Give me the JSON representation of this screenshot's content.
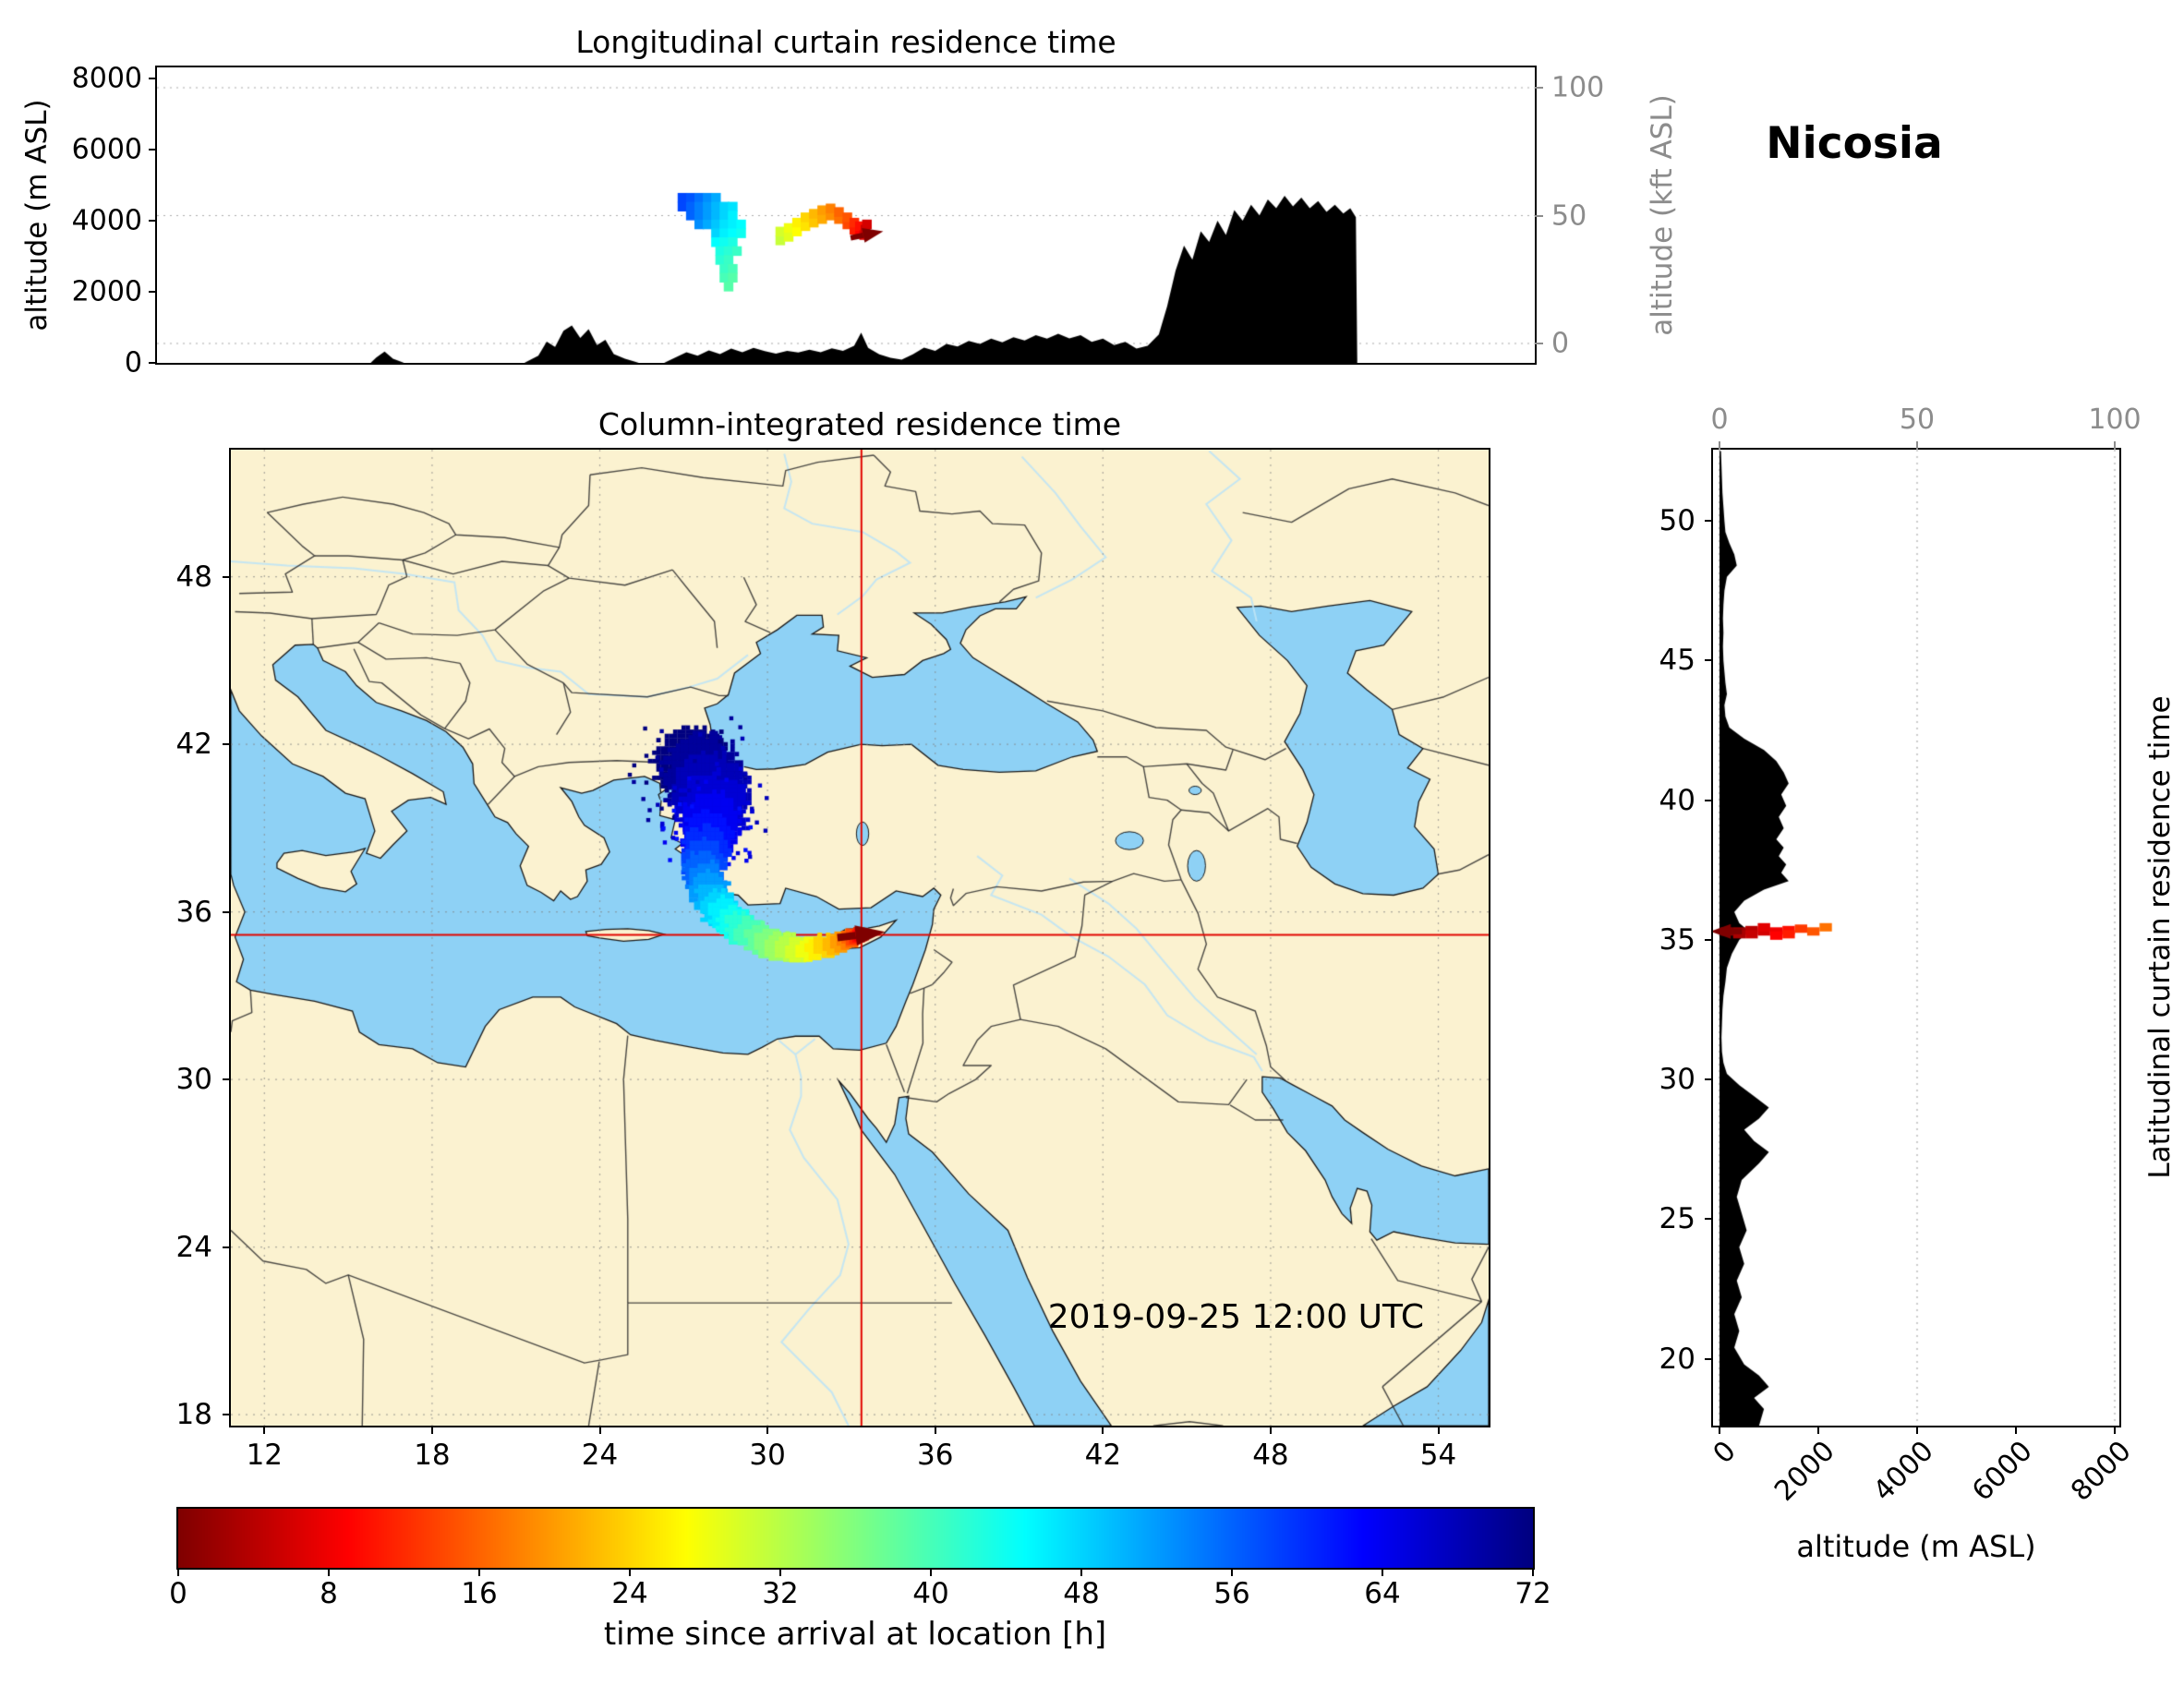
{
  "figure": {
    "location": "Nicosia",
    "datetime": "2019-09-25 12:00 UTC"
  },
  "colors": {
    "land": "#fbf2d0",
    "sea": "#8ed1f5",
    "coast": "#1a1a1a",
    "border": "#2b2b2b",
    "terrain": "#000000",
    "crosshair": "#e10600",
    "grid": "#999999",
    "axis_gray": "#8c8c8c",
    "river": "#bfe4f5",
    "arrow": "#7f0000"
  },
  "panels": {
    "longitudinal": {
      "title": "Longitudinal curtain residence time",
      "ylabel_left": "altitude (m ASL)",
      "ylabel_right": "altitude (kft ASL)",
      "yticks_left": [
        0,
        2000,
        4000,
        6000,
        8000
      ],
      "yticks_right": [
        0,
        50,
        100
      ],
      "ylim_m": [
        0,
        8300
      ]
    },
    "map": {
      "title": "Column-integrated residence time",
      "xticks": [
        12,
        18,
        24,
        30,
        36,
        42,
        48,
        54
      ],
      "yticks": [
        18,
        24,
        30,
        36,
        42,
        48
      ],
      "extent": {
        "lon": [
          10.8,
          55.8
        ],
        "lat": [
          17.6,
          52.55
        ]
      },
      "datetime": "2019-09-25 12:00 UTC"
    },
    "latitudinal": {
      "ylabel_right": "Latitudinal curtain residence time",
      "xlabel": "altitude (m ASL)",
      "xticks_m": [
        0,
        2000,
        4000,
        6000,
        8000
      ],
      "xticks_kft": [
        0,
        50,
        100
      ],
      "yticks_lat": [
        20,
        25,
        30,
        35,
        40,
        45,
        50
      ]
    }
  },
  "colorbar": {
    "label": "time since arrival at location [h]",
    "ticks": [
      0,
      8,
      16,
      24,
      32,
      40,
      48,
      56,
      64,
      72
    ],
    "min": 0,
    "max": 72,
    "colormap": "jet_r"
  },
  "chart_data": [
    {
      "name": "longitudinal_curtain",
      "type": "heatmap",
      "x": "longitude_deg",
      "y": "altitude_m",
      "value": "time_since_arrival_h",
      "terrain_profile": [
        [
          8.2,
          0
        ],
        [
          15.8,
          0
        ],
        [
          16.0,
          150
        ],
        [
          16.3,
          320
        ],
        [
          16.6,
          120
        ],
        [
          17.0,
          0
        ],
        [
          21.3,
          0
        ],
        [
          21.8,
          200
        ],
        [
          22.1,
          600
        ],
        [
          22.4,
          450
        ],
        [
          22.7,
          900
        ],
        [
          23.0,
          1050
        ],
        [
          23.3,
          700
        ],
        [
          23.6,
          950
        ],
        [
          23.9,
          500
        ],
        [
          24.2,
          650
        ],
        [
          24.5,
          250
        ],
        [
          24.9,
          120
        ],
        [
          25.4,
          0
        ],
        [
          26.3,
          0
        ],
        [
          26.7,
          150
        ],
        [
          27.1,
          300
        ],
        [
          27.5,
          200
        ],
        [
          27.9,
          350
        ],
        [
          28.3,
          250
        ],
        [
          28.7,
          400
        ],
        [
          29.1,
          300
        ],
        [
          29.5,
          420
        ],
        [
          29.9,
          330
        ],
        [
          30.3,
          260
        ],
        [
          30.7,
          340
        ],
        [
          31.1,
          290
        ],
        [
          31.5,
          370
        ],
        [
          31.9,
          300
        ],
        [
          32.3,
          410
        ],
        [
          32.7,
          340
        ],
        [
          33.1,
          480
        ],
        [
          33.35,
          850
        ],
        [
          33.6,
          420
        ],
        [
          34.0,
          240
        ],
        [
          34.4,
          140
        ],
        [
          34.8,
          90
        ],
        [
          35.2,
          240
        ],
        [
          35.6,
          430
        ],
        [
          36.0,
          340
        ],
        [
          36.4,
          530
        ],
        [
          36.8,
          460
        ],
        [
          37.2,
          620
        ],
        [
          37.6,
          530
        ],
        [
          38.0,
          680
        ],
        [
          38.4,
          580
        ],
        [
          38.8,
          720
        ],
        [
          39.2,
          630
        ],
        [
          39.6,
          780
        ],
        [
          40.0,
          680
        ],
        [
          40.4,
          820
        ],
        [
          40.8,
          690
        ],
        [
          41.2,
          780
        ],
        [
          41.6,
          590
        ],
        [
          42.0,
          680
        ],
        [
          42.4,
          500
        ],
        [
          42.8,
          590
        ],
        [
          43.2,
          400
        ],
        [
          43.6,
          480
        ],
        [
          44.0,
          800
        ],
        [
          44.3,
          1600
        ],
        [
          44.6,
          2600
        ],
        [
          44.9,
          3300
        ],
        [
          45.2,
          2900
        ],
        [
          45.5,
          3700
        ],
        [
          45.8,
          3400
        ],
        [
          46.1,
          4000
        ],
        [
          46.4,
          3600
        ],
        [
          46.7,
          4300
        ],
        [
          47.0,
          4000
        ],
        [
          47.3,
          4450
        ],
        [
          47.6,
          4150
        ],
        [
          47.9,
          4600
        ],
        [
          48.2,
          4350
        ],
        [
          48.5,
          4700
        ],
        [
          48.8,
          4400
        ],
        [
          49.1,
          4650
        ],
        [
          49.4,
          4350
        ],
        [
          49.7,
          4550
        ],
        [
          50.0,
          4250
        ],
        [
          50.3,
          4450
        ],
        [
          50.6,
          4200
        ],
        [
          50.85,
          4350
        ],
        [
          51.05,
          4100
        ],
        [
          51.1,
          0
        ],
        [
          57.4,
          0
        ]
      ],
      "cells": [
        [
          26.95,
          4650,
          58
        ],
        [
          27.25,
          4650,
          57
        ],
        [
          27.55,
          4650,
          55
        ],
        [
          27.85,
          4650,
          53
        ],
        [
          28.15,
          4650,
          51
        ],
        [
          26.95,
          4400,
          58
        ],
        [
          27.25,
          4400,
          56
        ],
        [
          27.55,
          4400,
          54
        ],
        [
          27.85,
          4400,
          52
        ],
        [
          28.15,
          4400,
          50
        ],
        [
          28.45,
          4400,
          48
        ],
        [
          28.75,
          4400,
          47
        ],
        [
          27.25,
          4150,
          56
        ],
        [
          27.55,
          4150,
          54
        ],
        [
          27.85,
          4150,
          52
        ],
        [
          28.15,
          4150,
          50
        ],
        [
          28.45,
          4150,
          48
        ],
        [
          28.75,
          4150,
          46
        ],
        [
          27.55,
          3900,
          53
        ],
        [
          27.85,
          3900,
          51
        ],
        [
          28.15,
          3900,
          49
        ],
        [
          28.45,
          3900,
          47
        ],
        [
          28.75,
          3900,
          46
        ],
        [
          29.05,
          3900,
          45
        ],
        [
          28.15,
          3650,
          48
        ],
        [
          28.45,
          3650,
          46
        ],
        [
          28.75,
          3650,
          45
        ],
        [
          29.05,
          3650,
          44
        ],
        [
          28.15,
          3400,
          45
        ],
        [
          28.45,
          3400,
          44
        ],
        [
          28.75,
          3400,
          43
        ],
        [
          28.3,
          3150,
          43
        ],
        [
          28.6,
          3150,
          42
        ],
        [
          28.9,
          3150,
          41
        ],
        [
          28.3,
          2900,
          42
        ],
        [
          28.6,
          2900,
          41
        ],
        [
          28.45,
          2650,
          41
        ],
        [
          28.75,
          2650,
          40
        ],
        [
          28.45,
          2400,
          40
        ],
        [
          28.75,
          2400,
          39
        ],
        [
          28.6,
          2150,
          39
        ],
        [
          30.45,
          3450,
          31
        ],
        [
          30.45,
          3700,
          30
        ],
        [
          30.75,
          3550,
          29
        ],
        [
          30.75,
          3800,
          28
        ],
        [
          31.05,
          3700,
          27
        ],
        [
          31.05,
          3950,
          26
        ],
        [
          31.35,
          3850,
          25
        ],
        [
          31.35,
          4100,
          24
        ],
        [
          31.65,
          3950,
          23
        ],
        [
          31.65,
          4200,
          22
        ],
        [
          31.95,
          4050,
          21
        ],
        [
          31.95,
          4300,
          20
        ],
        [
          32.25,
          4150,
          19
        ],
        [
          32.25,
          4350,
          18
        ],
        [
          32.55,
          4050,
          17
        ],
        [
          32.55,
          4250,
          16
        ],
        [
          32.85,
          3900,
          14
        ],
        [
          32.85,
          4100,
          15
        ],
        [
          33.1,
          3750,
          11
        ],
        [
          33.1,
          3950,
          12
        ],
        [
          33.3,
          3650,
          9
        ],
        [
          33.3,
          3850,
          10
        ],
        [
          33.45,
          3600,
          7
        ],
        [
          33.5,
          3750,
          5
        ],
        [
          33.55,
          3900,
          6
        ]
      ],
      "arrow": {
        "lon": 33.62,
        "alt": 3620,
        "direction": "east"
      }
    },
    {
      "name": "column_integrated_map",
      "type": "heatmap",
      "x": "longitude_deg",
      "y": "latitude_deg",
      "value": "time_since_arrival_h",
      "receptor": {
        "lon": 33.36,
        "lat": 35.18
      },
      "trajectory": [
        [
          27.3,
          41.4,
          72,
          1.5
        ],
        [
          27.7,
          40.9,
          70,
          1.65
        ],
        [
          27.95,
          40.3,
          68,
          1.6
        ],
        [
          28.05,
          39.7,
          66,
          1.45
        ],
        [
          28.0,
          39.15,
          64,
          1.25
        ],
        [
          27.85,
          38.7,
          62,
          1.05
        ],
        [
          27.8,
          38.25,
          60,
          0.95
        ],
        [
          27.72,
          37.85,
          58,
          0.88
        ],
        [
          27.7,
          37.45,
          56,
          0.84
        ],
        [
          27.78,
          37.1,
          54,
          0.8
        ],
        [
          27.9,
          36.75,
          52,
          0.78
        ],
        [
          28.05,
          36.45,
          50,
          0.75
        ],
        [
          28.25,
          36.15,
          48,
          0.73
        ],
        [
          28.5,
          35.9,
          46,
          0.7
        ],
        [
          28.75,
          35.65,
          44,
          0.68
        ],
        [
          29.05,
          35.42,
          42,
          0.66
        ],
        [
          29.35,
          35.22,
          40,
          0.64
        ],
        [
          29.7,
          35.02,
          38,
          0.62
        ],
        [
          30.05,
          34.87,
          36,
          0.6
        ],
        [
          30.4,
          34.76,
          34,
          0.58
        ],
        [
          30.75,
          34.7,
          32,
          0.56
        ],
        [
          31.1,
          34.66,
          30,
          0.54
        ],
        [
          31.45,
          34.66,
          28,
          0.52
        ],
        [
          31.75,
          34.7,
          26,
          0.5
        ],
        [
          32.05,
          34.76,
          24,
          0.48
        ],
        [
          32.35,
          34.83,
          22,
          0.45
        ],
        [
          32.6,
          34.9,
          20,
          0.43
        ],
        [
          32.8,
          34.97,
          18,
          0.4
        ],
        [
          32.95,
          35.03,
          16,
          0.38
        ],
        [
          33.08,
          35.08,
          14,
          0.35
        ],
        [
          33.18,
          35.11,
          12,
          0.33
        ],
        [
          33.26,
          35.14,
          10,
          0.3
        ],
        [
          33.32,
          35.16,
          8,
          0.28
        ],
        [
          33.36,
          35.17,
          6,
          0.26
        ],
        [
          33.38,
          35.18,
          4,
          0.23
        ],
        [
          33.39,
          35.18,
          2,
          0.2
        ],
        [
          33.4,
          35.18,
          0,
          0.18
        ]
      ],
      "arrow": {
        "lon": 33.42,
        "lat": 35.19,
        "direction": "east"
      }
    },
    {
      "name": "latitudinal_curtain",
      "type": "heatmap",
      "x": "altitude_m",
      "y": "latitude_deg",
      "value": "time_since_arrival_h",
      "terrain_profile": [
        [
          17.6,
          800
        ],
        [
          18.2,
          900
        ],
        [
          18.6,
          700
        ],
        [
          19.0,
          1000
        ],
        [
          19.4,
          800
        ],
        [
          19.8,
          500
        ],
        [
          20.4,
          300
        ],
        [
          21.0,
          400
        ],
        [
          21.6,
          300
        ],
        [
          22.2,
          450
        ],
        [
          22.8,
          350
        ],
        [
          23.4,
          500
        ],
        [
          24.0,
          400
        ],
        [
          24.6,
          550
        ],
        [
          25.2,
          450
        ],
        [
          25.8,
          350
        ],
        [
          26.4,
          450
        ],
        [
          27.0,
          800
        ],
        [
          27.4,
          1000
        ],
        [
          27.8,
          700
        ],
        [
          28.2,
          500
        ],
        [
          28.6,
          800
        ],
        [
          29.0,
          1000
        ],
        [
          29.4,
          700
        ],
        [
          29.8,
          400
        ],
        [
          30.2,
          150
        ],
        [
          30.6,
          80
        ],
        [
          31.0,
          50
        ],
        [
          31.5,
          40
        ],
        [
          32.0,
          50
        ],
        [
          32.5,
          60
        ],
        [
          33.0,
          80
        ],
        [
          33.5,
          120
        ],
        [
          34.0,
          150
        ],
        [
          34.5,
          250
        ],
        [
          35.0,
          400
        ],
        [
          35.3,
          600
        ],
        [
          35.6,
          400
        ],
        [
          36.0,
          300
        ],
        [
          36.4,
          500
        ],
        [
          36.8,
          900
        ],
        [
          37.1,
          1400
        ],
        [
          37.4,
          1250
        ],
        [
          37.7,
          1350
        ],
        [
          38.0,
          1200
        ],
        [
          38.3,
          1300
        ],
        [
          38.6,
          1150
        ],
        [
          39.0,
          1300
        ],
        [
          39.4,
          1200
        ],
        [
          39.8,
          1350
        ],
        [
          40.2,
          1250
        ],
        [
          40.6,
          1400
        ],
        [
          41.0,
          1300
        ],
        [
          41.4,
          1150
        ],
        [
          41.8,
          900
        ],
        [
          42.2,
          500
        ],
        [
          42.6,
          200
        ],
        [
          43.0,
          120
        ],
        [
          43.4,
          100
        ],
        [
          43.8,
          150
        ],
        [
          44.2,
          120
        ],
        [
          44.6,
          100
        ],
        [
          45.0,
          80
        ],
        [
          45.5,
          70
        ],
        [
          46.0,
          80
        ],
        [
          46.5,
          70
        ],
        [
          47.0,
          80
        ],
        [
          47.5,
          100
        ],
        [
          48.0,
          150
        ],
        [
          48.4,
          350
        ],
        [
          48.8,
          300
        ],
        [
          49.2,
          200
        ],
        [
          49.6,
          120
        ],
        [
          50.0,
          100
        ],
        [
          50.5,
          80
        ],
        [
          51.0,
          60
        ],
        [
          51.5,
          50
        ],
        [
          52.0,
          40
        ],
        [
          52.5,
          30
        ]
      ],
      "cells": [
        [
          35.3,
          150,
          1
        ],
        [
          35.3,
          400,
          2
        ],
        [
          35.2,
          400,
          3
        ],
        [
          35.35,
          650,
          4
        ],
        [
          35.2,
          650,
          5
        ],
        [
          35.3,
          900,
          6
        ],
        [
          35.45,
          900,
          7
        ],
        [
          35.3,
          1150,
          8
        ],
        [
          35.15,
          1150,
          9
        ],
        [
          35.35,
          1400,
          10
        ],
        [
          35.2,
          1400,
          11
        ],
        [
          35.4,
          1650,
          13
        ],
        [
          35.3,
          1900,
          15
        ],
        [
          35.45,
          2150,
          17
        ]
      ],
      "arrow": {
        "lat": 35.3,
        "alt": 80,
        "direction": "west"
      }
    }
  ]
}
